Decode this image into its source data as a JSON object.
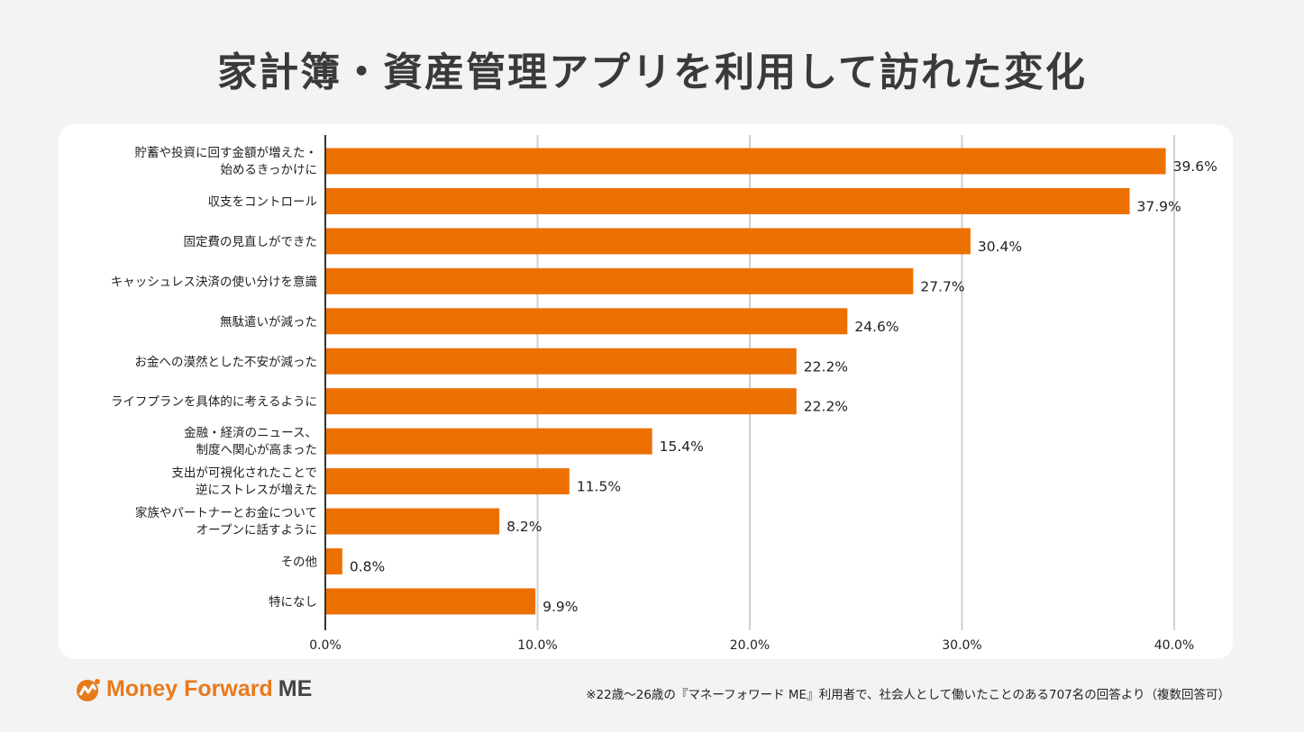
{
  "title": "家計簿・資産管理アプリを利用して訪れた変化",
  "logo": {
    "brand": "Money Forward",
    "suffix": "ME",
    "brand_color": "#e87a1b"
  },
  "footnote": "※22歳〜26歳の『マネーフォワード ME』利用者で、社会人として働いたことのある707名の回答より（複数回答可）",
  "chart_data": {
    "type": "bar",
    "orientation": "horizontal",
    "title": "家計簿・資産管理アプリを利用して訪れた変化",
    "categories": [
      [
        "貯蓄や投資に回す金額が増えた・",
        "始めるきっかけに"
      ],
      [
        "収支をコントロール"
      ],
      [
        "固定費の見直しができた"
      ],
      [
        "キャッシュレス決済の使い分けを意識"
      ],
      [
        "無駄遣いが減った"
      ],
      [
        "お金への漠然とした不安が減った"
      ],
      [
        "ライフプランを具体的に考えるように"
      ],
      [
        "金融・経済のニュース、",
        "制度へ関心が高まった"
      ],
      [
        "支出が可視化されたことで",
        "逆にストレスが増えた"
      ],
      [
        "家族やパートナーとお金について",
        "オープンに話すように"
      ],
      [
        "その他"
      ],
      [
        "特になし"
      ]
    ],
    "values": [
      39.6,
      37.9,
      30.4,
      27.7,
      24.6,
      22.2,
      22.2,
      15.4,
      11.5,
      8.2,
      0.8,
      9.9
    ],
    "data_labels": [
      "39.6%",
      "37.9%",
      "30.4%",
      "27.7%",
      "24.6%",
      "22.2%",
      "22.2%",
      "15.4%",
      "11.5%",
      "8.2%",
      "0.8%",
      "9.9%"
    ],
    "xlim": [
      0,
      40
    ],
    "x_ticks": [
      "0.0%",
      "10.0%",
      "20.0%",
      "30.0%",
      "40.0%"
    ],
    "grid": true,
    "bar_color": "#ec7000",
    "xlabel": "",
    "ylabel": ""
  }
}
